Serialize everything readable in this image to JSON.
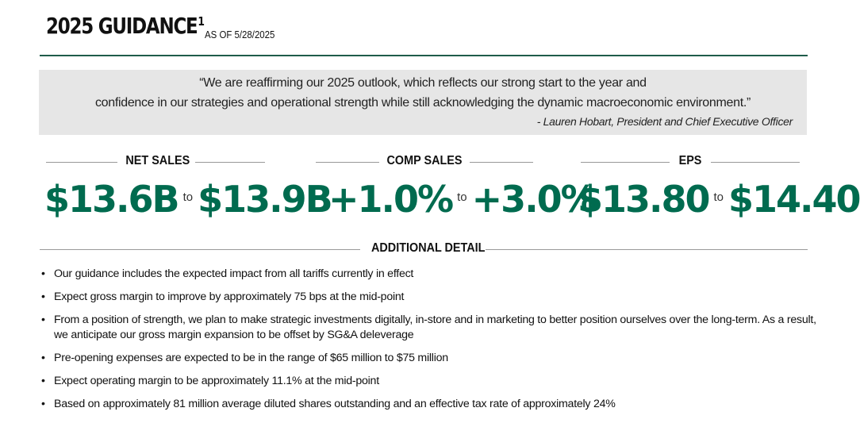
{
  "header": {
    "title": "2025 GUIDANCE",
    "footnote_mark": "1",
    "as_of": "AS OF 5/28/2025"
  },
  "quote": {
    "line1": "“We are reaffirming our 2025 outlook, which reflects our strong start to the year and",
    "line2": "confidence in our strategies and operational strength while still acknowledging the dynamic macroeconomic environment.”",
    "author": "- Lauren Hobart, President and Chief Executive Officer"
  },
  "metrics": [
    {
      "label": "NET SALES",
      "low": "$13.6B",
      "to": "to",
      "high": "$13.9B"
    },
    {
      "label": "COMP SALES",
      "low": "+1.0%",
      "to": "to",
      "high": "+3.0%"
    },
    {
      "label": "EPS",
      "low": "$13.80",
      "to": "to",
      "high": "$14.40"
    }
  ],
  "additional_detail": {
    "heading": "ADDITIONAL DETAIL",
    "bullet_char": "•",
    "items": [
      "Our guidance includes the expected impact from all tariffs currently in effect",
      "Expect gross margin to improve by approximately 75 bps at the mid-point",
      "From a position of strength, we plan to make strategic investments digitally, in-store and in marketing to better position ourselves over the long-term. As a result, we anticipate our gross margin expansion to be offset by SG&A deleverage",
      "Pre-opening expenses are expected to be in the range of $65 million to $75 million",
      "Expect operating margin to be approximately 11.1% at the mid-point",
      "Based on approximately 81 million average diluted shares outstanding and an effective tax rate of approximately 24%"
    ]
  },
  "colors": {
    "accent_green": "#006b4f",
    "rule_green": "#1f5c4a",
    "quote_bg": "#e6e6e6"
  }
}
